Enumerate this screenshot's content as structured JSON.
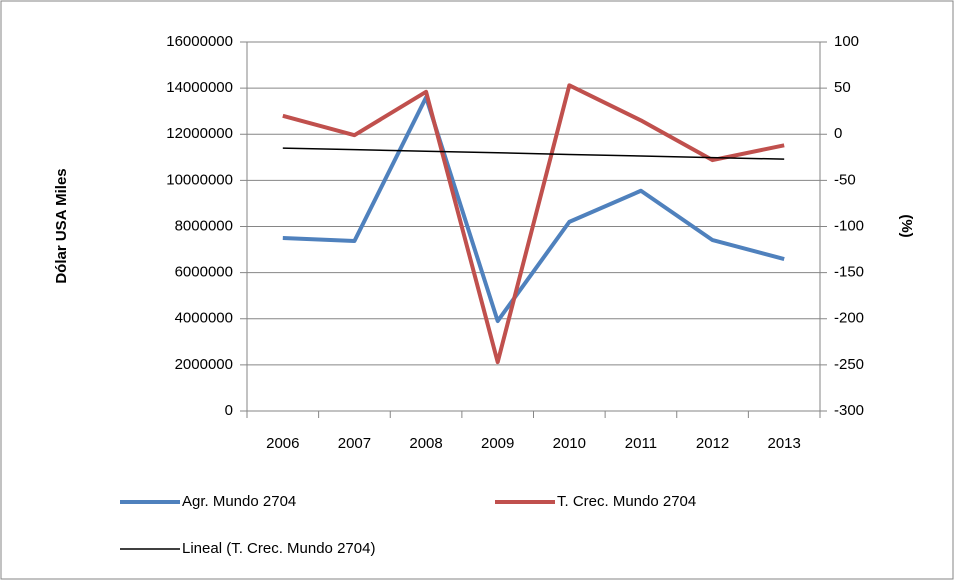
{
  "chart_data": {
    "type": "line",
    "y_label": "Dólar USA Miles",
    "y2_label": "(%)",
    "categories": [
      "2006",
      "2007",
      "2008",
      "2009",
      "2010",
      "2011",
      "2012",
      "2013"
    ],
    "series": [
      {
        "name": "Agr. Mundo 2704",
        "color": "#4f81bd",
        "width": 4,
        "values": [
          7500000,
          7370000,
          13600000,
          3900000,
          8200000,
          9550000,
          7410000,
          6590000
        ]
      },
      {
        "name": "T. Crec. Mundo 2704",
        "color": "#c0504d",
        "width": 4,
        "axis": "y2",
        "values": [
          20,
          -1,
          46,
          -247,
          53,
          15,
          -28,
          -12
        ]
      },
      {
        "name": "Lineal (T. Crec. Mundo 2704)",
        "color": "#000000",
        "width": 1.5,
        "axis": "y2",
        "values": [
          -15,
          -16.7,
          -18.4,
          -20.1,
          -21.9,
          -23.6,
          -25.3,
          -27
        ]
      }
    ],
    "ylim": [
      0,
      16000000
    ],
    "yticks": [
      0,
      2000000,
      4000000,
      6000000,
      8000000,
      10000000,
      12000000,
      14000000,
      16000000
    ],
    "y2lim": [
      -300,
      100
    ],
    "y2ticks": [
      -300,
      -250,
      -200,
      -150,
      -100,
      -50,
      0,
      50,
      100
    ],
    "grid": true,
    "legend": "bottom"
  }
}
